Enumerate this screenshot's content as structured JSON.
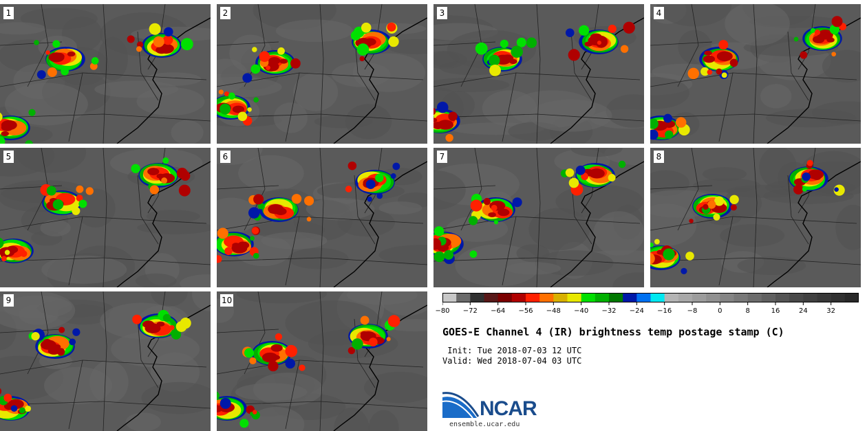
{
  "panels": [
    {
      "label": "1"
    },
    {
      "label": "2"
    },
    {
      "label": "3"
    },
    {
      "label": "4"
    },
    {
      "label": "5"
    },
    {
      "label": "6"
    },
    {
      "label": "7"
    },
    {
      "label": "8"
    },
    {
      "label": "9"
    },
    {
      "label": "10"
    }
  ],
  "colorbar": {
    "ticks": [
      "−80",
      "−72",
      "−64",
      "−56",
      "−48",
      "−40",
      "−32",
      "−24",
      "−16",
      "−8",
      "0",
      "8",
      "16",
      "24",
      "32"
    ],
    "colors": [
      "#c8c8c8",
      "#6a6a6a",
      "#303030",
      "#581818",
      "#7a0000",
      "#b00000",
      "#ff2000",
      "#ff7000",
      "#d8b000",
      "#e8e800",
      "#00e000",
      "#00b000",
      "#007800",
      "#0018a8",
      "#0070f0",
      "#00e8f0",
      "#b4b4b4",
      "#a8a8a8",
      "#9c9c9c",
      "#909090",
      "#848484",
      "#787878",
      "#6c6c6c",
      "#606060",
      "#545454",
      "#484848",
      "#404040",
      "#383838",
      "#303030",
      "#282828"
    ]
  },
  "title": "GOES-E Channel 4 (IR) brightness temp postage stamp (C)",
  "init_line": " Init: Tue 2018-07-03 12 UTC",
  "valid_line": "Valid: Wed 2018-07-04 03 UTC",
  "logo": {
    "text": "NCAR",
    "site": "ensemble.ucar.edu",
    "brand_color": "#1a4c8c"
  }
}
